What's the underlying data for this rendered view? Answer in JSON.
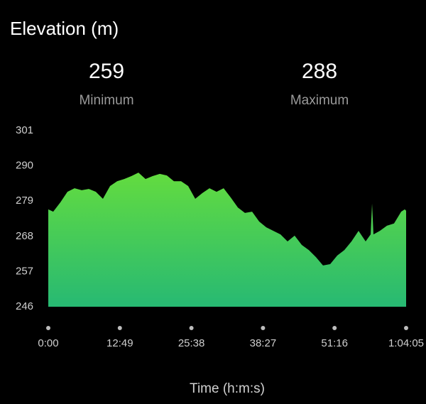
{
  "chart_data": {
    "type": "area",
    "title": "Elevation (m)",
    "stats": [
      {
        "value": 259,
        "label": "Minimum"
      },
      {
        "value": 288,
        "label": "Maximum"
      }
    ],
    "x_label": "Time (h:m:s)",
    "x": [
      0,
      53,
      130,
      206,
      282,
      359,
      435,
      511,
      587,
      664,
      740,
      816,
      893,
      969,
      1045,
      1121,
      1198,
      1274,
      1350,
      1427,
      1503,
      1579,
      1656,
      1732,
      1808,
      1884,
      1961,
      2037,
      2113,
      2190,
      2266,
      2342,
      2418,
      2495,
      2571,
      2647,
      2724,
      2800,
      2876,
      2952,
      3029,
      3105,
      3181,
      3258,
      3334,
      3410,
      3464,
      3479,
      3494,
      3563,
      3639,
      3715,
      3792,
      3830,
      3845
    ],
    "values": [
      276.4,
      275.7,
      278.6,
      281.9,
      283,
      282.4,
      282.8,
      281.9,
      279.7,
      283.7,
      285.2,
      285.9,
      286.8,
      287.9,
      285.9,
      286.8,
      287.5,
      287,
      285.2,
      285.2,
      283.7,
      279.7,
      281.5,
      283,
      281.9,
      283,
      280.1,
      277,
      275.3,
      275.7,
      272.6,
      270.8,
      269.7,
      268.6,
      266.4,
      268.2,
      265.3,
      263.7,
      261.5,
      258.9,
      259.3,
      262,
      263.7,
      266.4,
      269.7,
      266.4,
      268.6,
      278.2,
      268.6,
      269.7,
      271.3,
      272,
      275.7,
      276.4,
      276
    ],
    "gradient": [
      "#63dc3f",
      "#27b973"
    ],
    "xlim": [
      0,
      3845
    ],
    "xticks": [
      {
        "value": 0,
        "label": "0:00"
      },
      {
        "value": 769,
        "label": "12:49"
      },
      {
        "value": 1538,
        "label": "25:38"
      },
      {
        "value": 2307,
        "label": "38:27"
      },
      {
        "value": 3076,
        "label": "51:16"
      },
      {
        "value": 3845,
        "label": "1:04:05"
      }
    ],
    "ylim": [
      246,
      301
    ],
    "yticks": [
      246,
      257,
      268,
      279,
      290,
      301
    ],
    "grid": false
  }
}
